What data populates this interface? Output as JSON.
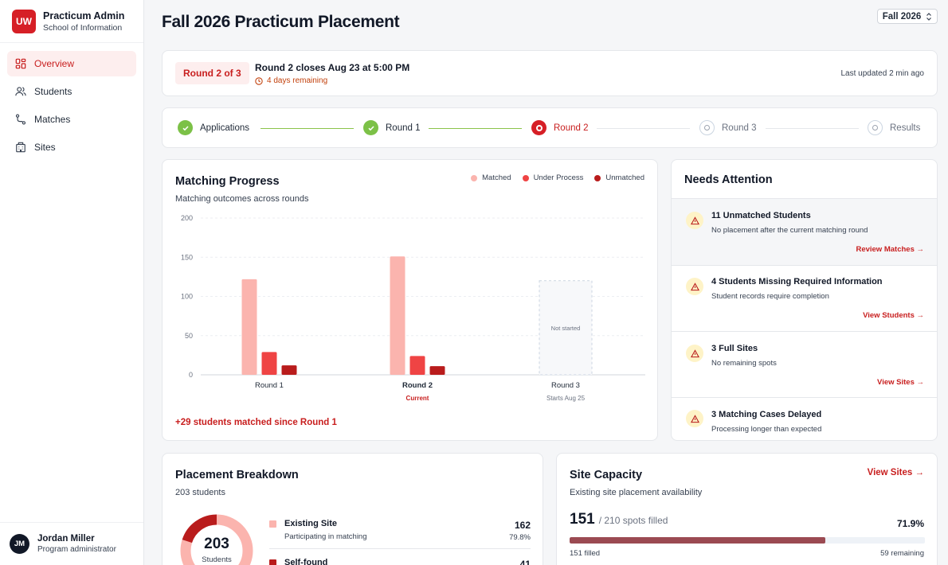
{
  "app": {
    "logo": "UW",
    "title": "Practicum Admin",
    "subtitle": "School of Information"
  },
  "nav": [
    {
      "label": "Overview",
      "icon": "grid-icon",
      "active": true
    },
    {
      "label": "Students",
      "icon": "users-icon",
      "active": false
    },
    {
      "label": "Matches",
      "icon": "route-icon",
      "active": false
    },
    {
      "label": "Sites",
      "icon": "building-icon",
      "active": false
    }
  ],
  "user": {
    "initials": "JM",
    "name": "Jordan Miller",
    "role": "Program administrator"
  },
  "header": {
    "title": "Fall 2026 Practicum Placement",
    "term": "Fall 2026"
  },
  "round": {
    "badge": "Round 2 of 3",
    "title": "Round 2 closes Aug 23 at 5:00 PM",
    "remaining": "4 days remaining",
    "updated": "Last updated 2 min ago"
  },
  "steps": [
    {
      "label": "Applications",
      "state": "done"
    },
    {
      "label": "Round 1",
      "state": "done"
    },
    {
      "label": "Round 2",
      "state": "current"
    },
    {
      "label": "Round 3",
      "state": "pending"
    },
    {
      "label": "Results",
      "state": "pending"
    }
  ],
  "progress": {
    "title": "Matching Progress",
    "subtitle": "Matching outcomes across rounds",
    "footer": "+29 students matched since Round 1",
    "not_started": "Not started",
    "round_notes": [
      "",
      "Current",
      "Starts Aug 25"
    ]
  },
  "chart_data": {
    "type": "bar",
    "categories": [
      "Round 1",
      "Round 2",
      "Round 3"
    ],
    "series": [
      {
        "name": "Matched",
        "values": [
          122,
          151,
          null
        ]
      },
      {
        "name": "Under Process",
        "values": [
          29,
          24,
          null
        ]
      },
      {
        "name": "Unmatched",
        "values": [
          12,
          11,
          null
        ]
      }
    ],
    "ylim": [
      0,
      200
    ],
    "yticks": [
      0,
      50,
      100,
      150,
      200
    ],
    "colors": [
      "#fbb4ae",
      "#ef4444",
      "#b91c1c"
    ],
    "grid": true,
    "legend": "top-right"
  },
  "attention": {
    "title": "Needs Attention",
    "items": [
      {
        "title": "11 Unmatched Students",
        "desc": "No placement after the current matching round",
        "link": "Review Matches →"
      },
      {
        "title": "4 Students Missing Required Information",
        "desc": "Student records require completion",
        "link": "View Students →"
      },
      {
        "title": "3 Full Sites",
        "desc": "No remaining spots",
        "link": "View Sites →"
      },
      {
        "title": "3 Matching Cases Delayed",
        "desc": "Processing longer than expected",
        "link": ""
      }
    ]
  },
  "breakdown": {
    "title": "Placement Breakdown",
    "subtitle": "203 students",
    "total": "203",
    "total_label": "Students",
    "rows": [
      {
        "label": "Existing Site",
        "desc": "Participating in matching",
        "count": "162",
        "pct": "79.8%",
        "color": "#fbb4ae"
      },
      {
        "label": "Self-found",
        "desc": "",
        "count": "41",
        "pct": "",
        "color": "#b91c1c"
      }
    ],
    "shares": [
      0.798,
      0.202
    ]
  },
  "capacity": {
    "title": "Site Capacity",
    "subtitle": "Existing site placement availability",
    "link": "View Sites →",
    "filled": "151",
    "of_text": "/ 210 spots filled",
    "pct": "71.9%",
    "fill_fraction": 0.719,
    "filled_label": "151 filled",
    "remaining_label": "59 remaining"
  }
}
